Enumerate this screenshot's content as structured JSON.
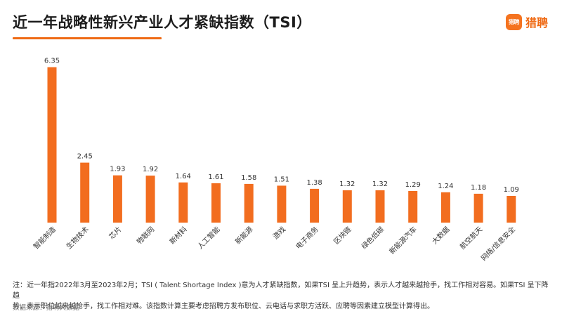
{
  "header": {
    "title": "近一年战略性新兴产业人才紧缺指数（TSI）",
    "logo_icon_text": "猎聘",
    "logo_text": "猎聘",
    "accent_color": "#ef6a14"
  },
  "chart_data": {
    "type": "bar",
    "categories": [
      "智能制造",
      "生物技术",
      "芯片",
      "物联网",
      "新材料",
      "人工智能",
      "新能源",
      "游戏",
      "电子商务",
      "区块链",
      "绿色低碳",
      "新能源汽车",
      "大数据",
      "航空航天",
      "网络/信息安全"
    ],
    "values": [
      6.35,
      2.45,
      1.93,
      1.92,
      1.64,
      1.61,
      1.58,
      1.51,
      1.38,
      1.32,
      1.32,
      1.29,
      1.24,
      1.18,
      1.09
    ],
    "value_labels": [
      "6.35",
      "2.45",
      "1.93",
      "1.92",
      "1.64",
      "1.61",
      "1.58",
      "1.51",
      "1.38",
      "1.32",
      "1.32",
      "1.29",
      "1.24",
      "1.18",
      "1.09"
    ],
    "bar_color": "#f26d1f",
    "ylim": [
      0,
      6.8
    ],
    "grid": false,
    "legend": "none"
  },
  "footnote": {
    "line1": "注：近一年指2022年3月至2023年2月；TSI ( Talent Shortage Index )意为人才紧缺指数，如果TSI 呈上升趋势，表示人才越来越抢手，找工作相对容易。如果TSI 呈下降趋",
    "line2": "势，表示职位越来越抢手，找工作相对难。该指数计算主要考虑招聘方发布职位、云电话与求职方活跃、应聘等因素建立模型计算得出。"
  },
  "source": "数据来源：猎聘大数据"
}
